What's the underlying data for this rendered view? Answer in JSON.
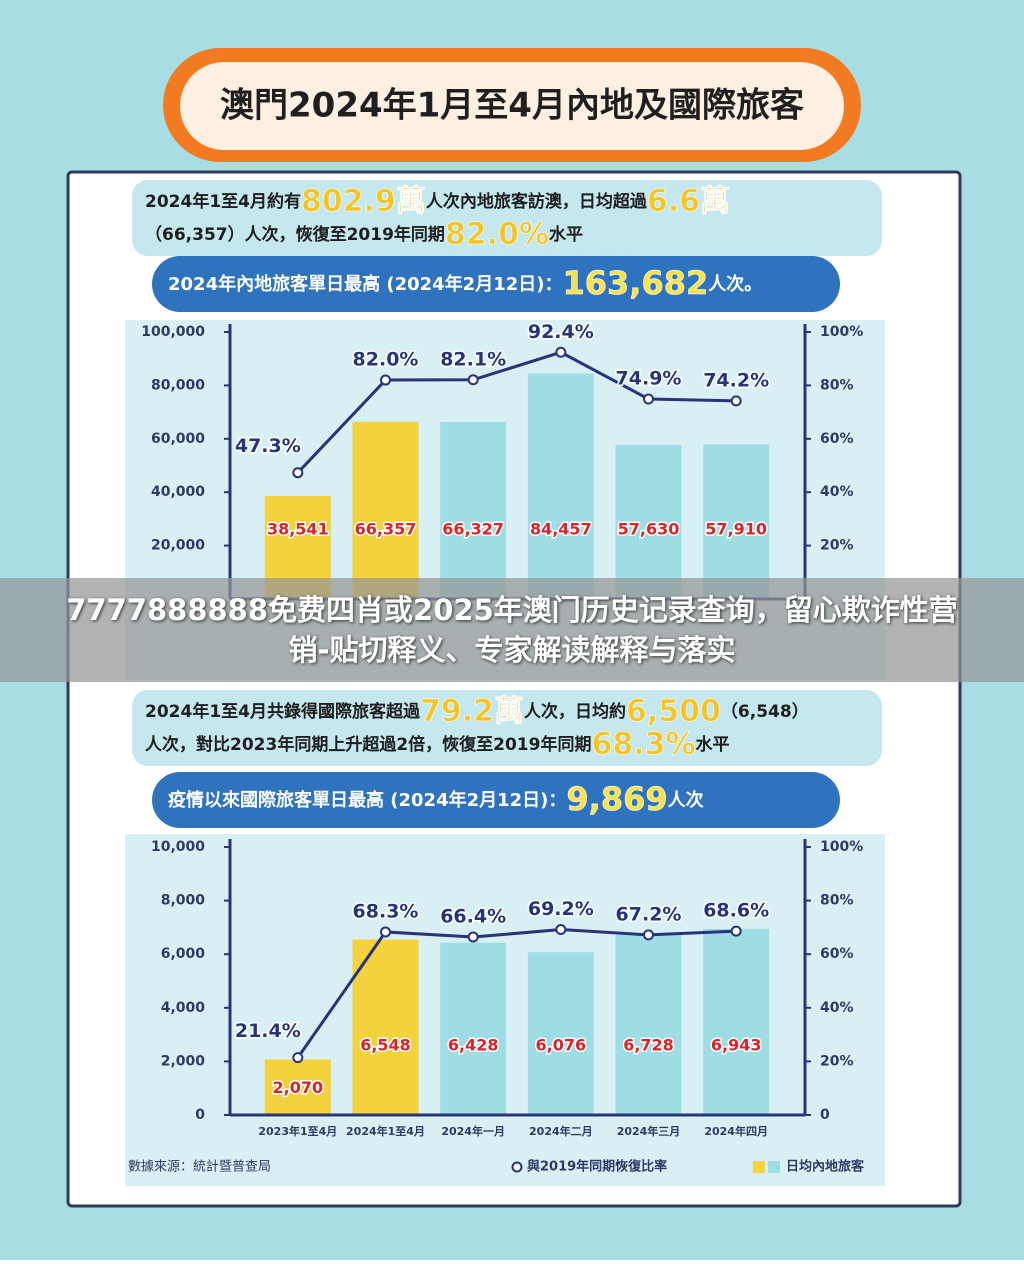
{
  "header": {
    "title": "澳門2024年1月至4月內地及國際旅客"
  },
  "sections": [
    {
      "summary_line1": [
        "2024年1至4月約有",
        "802.9萬",
        "人次內地旅客訪澳，日均超過",
        "6.6萬"
      ],
      "summary_line2": [
        "（66,357）人次，恢復至2019年同期",
        "82.0%",
        "水平"
      ],
      "record": [
        "2024年內地旅客單日最高 (2024年2月12日)：",
        "163,682",
        "人次。"
      ]
    },
    {
      "summary_line1": [
        "2024年1至4月共錄得國際旅客超過",
        "79.2萬",
        "人次，日均約",
        "6,500",
        "（6,548）"
      ],
      "summary_line2": [
        "人次，對比2023年同期上升超過2倍，恢復至2019年同期",
        "68.3%",
        "水平"
      ],
      "record": [
        "疫情以來國際旅客單日最高 (2024年2月12日)：",
        "9,869",
        "人次"
      ]
    }
  ],
  "overlay": "7777888888免费四肖或2025年澳门历史记录查询，留心欺诈性营销-贴切释义、专家解读解释与落实",
  "source": "數據來源：統計暨普查局",
  "chart_data": [
    {
      "type": "combo",
      "categories": [
        null,
        null,
        null,
        null,
        null,
        null
      ],
      "series": [
        {
          "type": "bar",
          "colors": [
            "#f3d23e",
            "#f3d23e",
            "#9fdde5",
            "#9fdde5",
            "#9fdde5",
            "#9fdde5"
          ],
          "values": [
            38541,
            66357,
            66327,
            84457,
            57630,
            57910
          ],
          "value_labels": [
            "38,541",
            "66,357",
            "66,327",
            "84,457",
            "57,630",
            "57,910"
          ]
        },
        {
          "type": "line",
          "axis": "y2",
          "color": "#27337a",
          "values": [
            47.3,
            82.0,
            82.1,
            92.4,
            74.9,
            74.2
          ],
          "value_labels": [
            "47.3%",
            "82.0%",
            "82.1%",
            "92.4%",
            "74.9%",
            "74.2%"
          ]
        }
      ],
      "ylim": [
        0,
        100000
      ],
      "yticks": [
        {
          "value": 20000,
          "label": "20,000"
        },
        {
          "value": 40000,
          "label": "40,000"
        },
        {
          "value": 60000,
          "label": "60,000"
        },
        {
          "value": 80000,
          "label": "80,000"
        },
        {
          "value": 100000,
          "label": "100,000"
        }
      ],
      "y2lim": [
        0,
        100
      ],
      "y2ticks": [
        {
          "value": 20,
          "label": "20%"
        },
        {
          "value": 40,
          "label": "40%"
        },
        {
          "value": 60,
          "label": "60%"
        },
        {
          "value": 80,
          "label": "80%"
        },
        {
          "value": 100,
          "label": "100%"
        }
      ]
    },
    {
      "type": "combo",
      "categories": [
        "2023年1至4月",
        "2024年1至4月",
        "2024年一月",
        "2024年二月",
        "2024年三月",
        "2024年四月"
      ],
      "series": [
        {
          "type": "bar",
          "name": "日均內地旅客",
          "colors": [
            "#f3d23e",
            "#f3d23e",
            "#9fdde5",
            "#9fdde5",
            "#9fdde5",
            "#9fdde5"
          ],
          "values": [
            2070,
            6548,
            6428,
            6076,
            6728,
            6943
          ],
          "value_labels": [
            "2,070",
            "6,548",
            "6,428",
            "6,076",
            "6,728",
            "6,943"
          ]
        },
        {
          "type": "line",
          "name": "與2019年同期恢復比率",
          "axis": "y2",
          "color": "#27337a",
          "values": [
            21.4,
            68.3,
            66.4,
            69.2,
            67.2,
            68.6
          ],
          "value_labels": [
            "21.4%",
            "68.3%",
            "66.4%",
            "69.2%",
            "67.2%",
            "68.6%"
          ]
        }
      ],
      "ylim": [
        0,
        10000
      ],
      "yticks": [
        0,
        {
          "value": 2000,
          "label": "2,000"
        },
        {
          "value": 4000,
          "label": "4,000"
        },
        {
          "value": 6000,
          "label": "6,000"
        },
        {
          "value": 8000,
          "label": "8,000"
        },
        {
          "value": 10000,
          "label": "10,000"
        }
      ],
      "y2lim": [
        0,
        100
      ],
      "y2ticks": [
        0,
        {
          "value": 20,
          "label": "20%"
        },
        {
          "value": 40,
          "label": "40%"
        },
        {
          "value": 60,
          "label": "60%"
        },
        {
          "value": 80,
          "label": "80%"
        },
        {
          "value": 100,
          "label": "100%"
        }
      ]
    }
  ]
}
